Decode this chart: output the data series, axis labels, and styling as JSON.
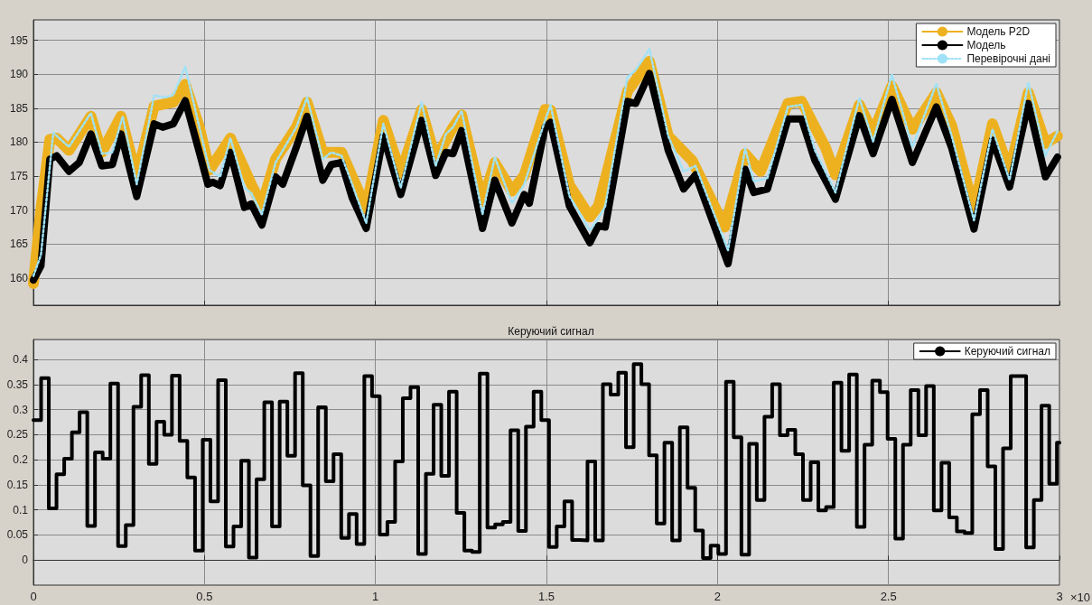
{
  "chart_data": [
    {
      "type": "line",
      "xlim": [
        0,
        3
      ],
      "xticks": [
        0,
        0.5,
        1,
        1.5,
        2,
        2.5,
        3
      ],
      "ylim": [
        156,
        198
      ],
      "yticks": [
        160,
        165,
        170,
        175,
        180,
        185,
        190,
        195
      ],
      "grid": true,
      "legend": "top right",
      "tick_labels": "y",
      "series": [
        {
          "name": "Модель P2D",
          "color": "#edb120",
          "x": [
            0,
            0.022,
            0.048,
            0.068,
            0.104,
            0.168,
            0.2,
            0.256,
            0.302,
            0.353,
            0.409,
            0.444,
            0.485,
            0.515,
            0.576,
            0.637,
            0.668,
            0.708,
            0.769,
            0.8,
            0.846,
            0.901,
            0.973,
            1.023,
            1.074,
            1.135,
            1.176,
            1.227,
            1.252,
            1.313,
            1.349,
            1.399,
            1.435,
            1.496,
            1.512,
            1.567,
            1.627,
            1.652,
            1.737,
            1.801,
            1.856,
            1.926,
            2.021,
            2.081,
            2.126,
            2.206,
            2.246,
            2.315,
            2.345,
            2.415,
            2.455,
            2.51,
            2.57,
            2.64,
            2.685,
            2.75,
            2.804,
            2.854,
            2.909,
            2.959,
            2.994
          ],
          "values": [
            159.2,
            170.2,
            180.4,
            180.6,
            178.8,
            183.8,
            178.5,
            183.8,
            174.9,
            185.3,
            185.9,
            188.5,
            182.2,
            175.9,
            180.6,
            173.8,
            170.7,
            177.5,
            182.2,
            185.9,
            178.5,
            178.5,
            170.2,
            183.2,
            175.4,
            184.8,
            177.5,
            182.2,
            184.0,
            171.2,
            177.0,
            172.8,
            175.1,
            184.8,
            184.7,
            173.7,
            169.0,
            170.6,
            187.5,
            191.9,
            180.9,
            177.3,
            167.5,
            178.3,
            175.7,
            185.7,
            186.0,
            179.3,
            175.2,
            185.5,
            181.4,
            188.3,
            181.9,
            187.3,
            182.4,
            170.1,
            182.7,
            175.7,
            187.3,
            179.8,
            180.9
          ]
        },
        {
          "name": "Модель",
          "color": "#000000",
          "x": [
            0,
            0.022,
            0.048,
            0.068,
            0.104,
            0.134,
            0.168,
            0.2,
            0.231,
            0.256,
            0.302,
            0.353,
            0.378,
            0.409,
            0.444,
            0.485,
            0.51,
            0.525,
            0.546,
            0.576,
            0.617,
            0.637,
            0.668,
            0.708,
            0.729,
            0.769,
            0.8,
            0.846,
            0.871,
            0.901,
            0.932,
            0.973,
            1.023,
            1.074,
            1.135,
            1.176,
            1.206,
            1.227,
            1.252,
            1.313,
            1.349,
            1.399,
            1.435,
            1.45,
            1.496,
            1.512,
            1.567,
            1.627,
            1.652,
            1.672,
            1.737,
            1.761,
            1.801,
            1.856,
            1.901,
            1.936,
            2.031,
            2.081,
            2.106,
            2.146,
            2.206,
            2.246,
            2.285,
            2.345,
            2.415,
            2.455,
            2.51,
            2.57,
            2.64,
            2.685,
            2.75,
            2.804,
            2.854,
            2.909,
            2.959,
            2.994
          ],
          "values": [
            159.7,
            161.8,
            177.5,
            178.0,
            175.7,
            177.0,
            181.2,
            176.5,
            176.7,
            181.2,
            172.0,
            182.7,
            182.2,
            182.7,
            186.1,
            178.5,
            173.8,
            174.1,
            173.6,
            178.5,
            170.4,
            170.9,
            167.8,
            174.9,
            173.8,
            179.3,
            183.8,
            174.4,
            176.7,
            177.0,
            171.8,
            167.3,
            180.9,
            172.3,
            183.2,
            175.1,
            178.5,
            178.3,
            181.7,
            167.3,
            174.4,
            168.1,
            172.3,
            171.0,
            182.2,
            182.9,
            170.6,
            165.2,
            167.7,
            167.5,
            186.0,
            185.7,
            190.1,
            178.8,
            173.1,
            175.2,
            162.1,
            176.0,
            172.6,
            173.1,
            183.4,
            183.4,
            177.3,
            171.6,
            183.9,
            178.3,
            186.3,
            177.0,
            185.2,
            179.1,
            167.2,
            180.3,
            173.4,
            185.7,
            174.9,
            177.8
          ]
        },
        {
          "name": "Перевірочні дані",
          "color": "#9fe2f7",
          "line_style": "dotted",
          "x": [
            0,
            0.022,
            0.058,
            0.104,
            0.168,
            0.2,
            0.231,
            0.261,
            0.302,
            0.353,
            0.383,
            0.409,
            0.444,
            0.485,
            0.515,
            0.546,
            0.576,
            0.617,
            0.637,
            0.668,
            0.708,
            0.769,
            0.8,
            0.846,
            0.871,
            0.901,
            0.932,
            0.973,
            1.023,
            1.074,
            1.135,
            1.176,
            1.206,
            1.227,
            1.252,
            1.313,
            1.349,
            1.399,
            1.435,
            1.496,
            1.512,
            1.567,
            1.627,
            1.652,
            1.672,
            1.737,
            1.761,
            1.801,
            1.856,
            1.901,
            1.936,
            2.031,
            2.081,
            2.106,
            2.146,
            2.206,
            2.246,
            2.285,
            2.345,
            2.415,
            2.455,
            2.51,
            2.57,
            2.64,
            2.685,
            2.75,
            2.804,
            2.854,
            2.909,
            2.959,
            2.994
          ],
          "values": [
            160.3,
            163.4,
            181.4,
            179.3,
            184.3,
            178.3,
            178.5,
            183.8,
            173.8,
            186.9,
            186.6,
            186.9,
            191.1,
            182.2,
            175.9,
            174.9,
            180.6,
            173.3,
            172.5,
            169.4,
            177.0,
            182.2,
            186.6,
            177.5,
            178.5,
            178.0,
            173.8,
            168.1,
            182.7,
            173.3,
            185.9,
            176.5,
            181.2,
            182.2,
            184.6,
            169.4,
            177.8,
            171.0,
            173.8,
            183.2,
            185.5,
            172.1,
            167.0,
            168.8,
            170.6,
            189.6,
            190.6,
            193.7,
            180.9,
            175.7,
            176.5,
            164.1,
            179.1,
            174.2,
            174.7,
            185.2,
            185.5,
            178.8,
            172.6,
            186.5,
            180.1,
            189.9,
            179.3,
            188.6,
            180.9,
            168.5,
            181.9,
            174.4,
            188.8,
            178.0,
            181.6
          ]
        }
      ]
    },
    {
      "type": "step",
      "title": "Керуючий сигнал",
      "xlim": [
        0,
        3
      ],
      "xticks": [
        0,
        0.5,
        1,
        1.5,
        2,
        2.5,
        3
      ],
      "ylim": [
        -0.05,
        0.44
      ],
      "yticks": [
        0,
        0.05,
        0.1,
        0.15,
        0.2,
        0.25,
        0.3,
        0.35,
        0.4
      ],
      "grid": true,
      "legend": "top right",
      "annotations": [
        "×10"
      ],
      "series": [
        {
          "name": "Керуючий сигнал",
          "color": "#000000",
          "x": [
            0,
            0.0225,
            0.045,
            0.0675,
            0.09,
            0.1125,
            0.135,
            0.1575,
            0.18,
            0.2025,
            0.225,
            0.2475,
            0.27,
            0.2925,
            0.315,
            0.3375,
            0.36,
            0.3825,
            0.405,
            0.4275,
            0.45,
            0.4725,
            0.495,
            0.5175,
            0.54,
            0.5625,
            0.585,
            0.6075,
            0.63,
            0.6525,
            0.675,
            0.6975,
            0.72,
            0.7425,
            0.765,
            0.7875,
            0.81,
            0.8325,
            0.855,
            0.8775,
            0.9,
            0.9225,
            0.945,
            0.9675,
            0.99,
            1.0125,
            1.035,
            1.0575,
            1.08,
            1.1025,
            1.125,
            1.1475,
            1.17,
            1.1925,
            1.215,
            1.2375,
            1.26,
            1.2825,
            1.305,
            1.3275,
            1.35,
            1.3725,
            1.395,
            1.4175,
            1.44,
            1.4625,
            1.485,
            1.5075,
            1.53,
            1.5525,
            1.575,
            1.5975,
            1.62,
            1.6425,
            1.665,
            1.6875,
            1.71,
            1.7325,
            1.755,
            1.7775,
            1.8,
            1.8225,
            1.845,
            1.8675,
            1.89,
            1.9125,
            1.935,
            1.9575,
            1.98,
            2.0025,
            2.025,
            2.0475,
            2.07,
            2.0925,
            2.115,
            2.1375,
            2.16,
            2.1825,
            2.205,
            2.2275,
            2.25,
            2.2725,
            2.295,
            2.3175,
            2.34,
            2.3625,
            2.385,
            2.4075,
            2.43,
            2.4525,
            2.475,
            2.4975,
            2.52,
            2.5425,
            2.565,
            2.5875,
            2.61,
            2.6325,
            2.655,
            2.6775,
            2.7,
            2.7225,
            2.745,
            2.7675,
            2.79,
            2.8125,
            2.835,
            2.8575,
            2.88,
            2.9025,
            2.925,
            2.9475,
            2.97,
            2.9925,
            3
          ],
          "values": [
            0.279,
            0.363,
            0.103,
            0.171,
            0.202,
            0.255,
            0.295,
            0.068,
            0.215,
            0.202,
            0.352,
            0.028,
            0.07,
            0.306,
            0.369,
            0.192,
            0.276,
            0.25,
            0.368,
            0.238,
            0.165,
            0.019,
            0.24,
            0.117,
            0.359,
            0.027,
            0.067,
            0.198,
            0.005,
            0.161,
            0.315,
            0.067,
            0.316,
            0.208,
            0.373,
            0.149,
            0.008,
            0.305,
            0.157,
            0.211,
            0.044,
            0.092,
            0.032,
            0.367,
            0.327,
            0.051,
            0.076,
            0.197,
            0.323,
            0.345,
            0.012,
            0.172,
            0.31,
            0.168,
            0.336,
            0.094,
            0.019,
            0.016,
            0.372,
            0.065,
            0.071,
            0.076,
            0.259,
            0.058,
            0.266,
            0.336,
            0.279,
            0.026,
            0.067,
            0.117,
            0.04,
            0.039,
            0.197,
            0.039,
            0.351,
            0.33,
            0.374,
            0.225,
            0.391,
            0.351,
            0.209,
            0.073,
            0.234,
            0.039,
            0.265,
            0.144,
            0.059,
            0.004,
            0.029,
            0.012,
            0.356,
            0.245,
            0.011,
            0.232,
            0.12,
            0.286,
            0.351,
            0.249,
            0.26,
            0.211,
            0.12,
            0.195,
            0.099,
            0.106,
            0.354,
            0.218,
            0.37,
            0.066,
            0.23,
            0.358,
            0.335,
            0.242,
            0.043,
            0.23,
            0.339,
            0.249,
            0.347,
            0.099,
            0.194,
            0.085,
            0.057,
            0.054,
            0.291,
            0.339,
            0.187,
            0.022,
            0.223,
            0.367,
            0.367,
            0.025,
            0.12,
            0.308,
            0.152,
            0.234,
            0.234
          ]
        }
      ]
    }
  ]
}
